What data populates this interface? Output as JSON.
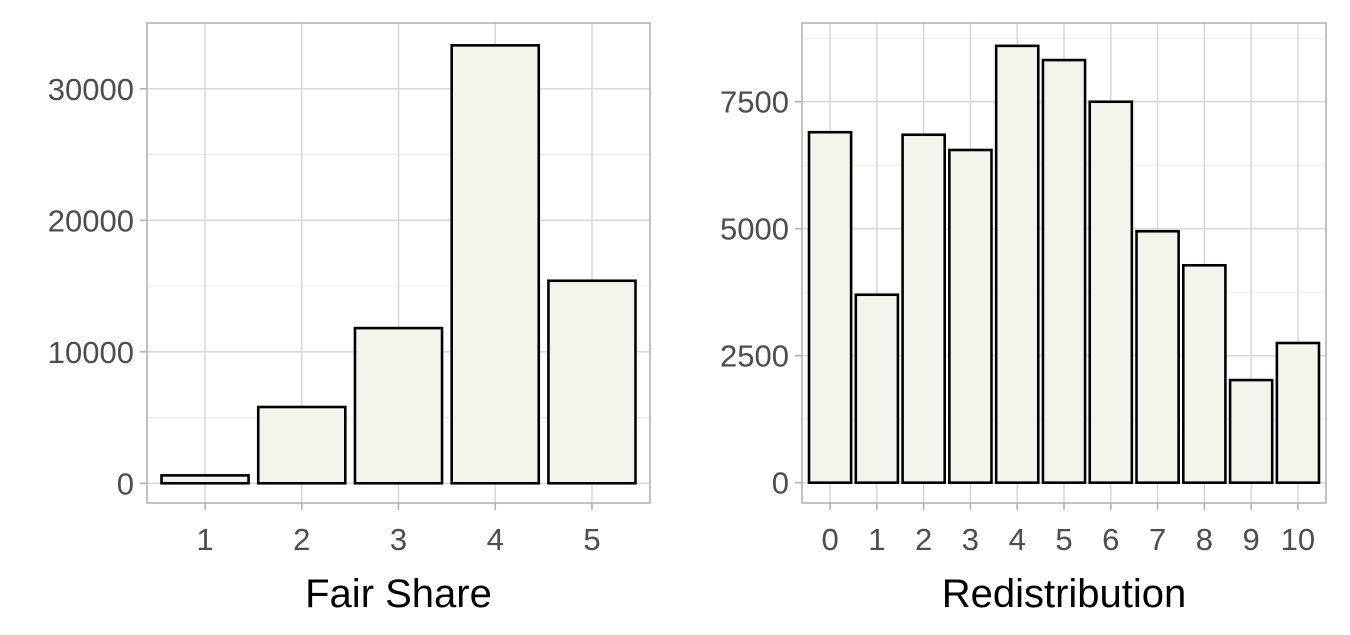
{
  "chart_data": [
    {
      "type": "bar",
      "xlabel": "Fair Share",
      "ylabel": "",
      "categories": [
        "1",
        "2",
        "3",
        "4",
        "5"
      ],
      "values": [
        600,
        5800,
        11800,
        33300,
        15400
      ],
      "ylim": [
        -1500,
        35000
      ],
      "yticks": [
        0,
        10000,
        20000,
        30000
      ],
      "ytick_labels": [
        "0",
        "10000",
        "20000",
        "30000"
      ],
      "grid": true,
      "bar_fill": "#f3f4ec",
      "bar_stroke": "#000000"
    },
    {
      "type": "bar",
      "xlabel": "Redistribution",
      "ylabel": "",
      "categories": [
        "0",
        "1",
        "2",
        "3",
        "4",
        "5",
        "6",
        "7",
        "8",
        "9",
        "10"
      ],
      "values": [
        6900,
        3700,
        6850,
        6550,
        8600,
        8320,
        7500,
        4950,
        4280,
        2020,
        2750
      ],
      "ylim": [
        -400,
        9050
      ],
      "yticks": [
        0,
        2500,
        5000,
        7500
      ],
      "ytick_labels": [
        "0",
        "2500",
        "5000",
        "7500"
      ],
      "grid": true,
      "bar_fill": "#f3f4ec",
      "bar_stroke": "#000000"
    }
  ]
}
